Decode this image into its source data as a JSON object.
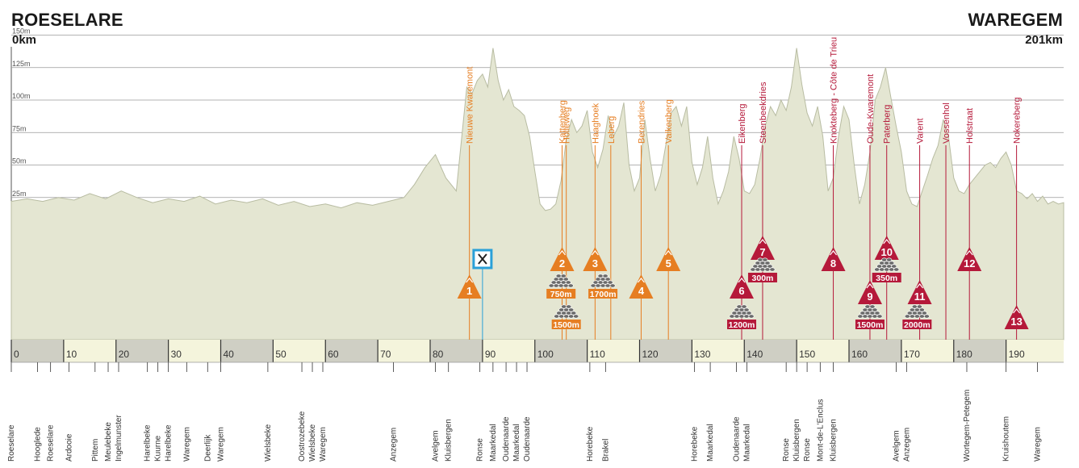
{
  "header": {
    "start_city": "ROESELARE",
    "start_km": "0km",
    "finish_city": "WAREGEM",
    "finish_km": "201km"
  },
  "colors": {
    "profile_fill": "#e4e6d2",
    "profile_edge": "#b8bca2",
    "climb_orange": "#e67e22",
    "climb_red": "#b5193a",
    "cobble_gray": "#6b6b6b",
    "axis_band_gray": "#cfcfc4",
    "axis_band_light": "#f4f4dc",
    "feed_blue": "#2aa0d8"
  },
  "chart_data": {
    "type": "area",
    "title": "",
    "xlabel": "",
    "ylabel": "",
    "xlim": [
      0,
      201
    ],
    "ylim": [
      0,
      160
    ],
    "y_ticks": [
      25,
      50,
      75,
      100,
      125,
      150
    ],
    "y_tick_labels": [
      "25m",
      "50m",
      "75m",
      "100m",
      "125m",
      "150m"
    ],
    "x_ticks": [
      0,
      10,
      20,
      30,
      40,
      50,
      60,
      70,
      80,
      90,
      100,
      110,
      120,
      130,
      140,
      150,
      160,
      170,
      180,
      190
    ],
    "grid": true,
    "profile": {
      "km": [
        0,
        3,
        6,
        9,
        12,
        15,
        18,
        21,
        24,
        27,
        30,
        33,
        36,
        39,
        42,
        45,
        48,
        51,
        54,
        57,
        60,
        63,
        66,
        69,
        72,
        75,
        77,
        79,
        81,
        83,
        85,
        86,
        87,
        88,
        89,
        90,
        91,
        92,
        93,
        94,
        95,
        96,
        97,
        98,
        99,
        100,
        101,
        102,
        103,
        104,
        105,
        106,
        107,
        108,
        109,
        110,
        111,
        112,
        113,
        114,
        115,
        116,
        117,
        118,
        119,
        120,
        121,
        122,
        123,
        124,
        125,
        126,
        127,
        128,
        129,
        130,
        131,
        132,
        133,
        134,
        135,
        136,
        137,
        138,
        139,
        140,
        141,
        142,
        143,
        144,
        145,
        146,
        147,
        148,
        149,
        150,
        151,
        152,
        153,
        154,
        155,
        156,
        157,
        158,
        159,
        160,
        161,
        162,
        163,
        164,
        165,
        166,
        167,
        168,
        169,
        170,
        171,
        172,
        173,
        174,
        175,
        176,
        177,
        178,
        179,
        180,
        181,
        182,
        183,
        184,
        185,
        186,
        187,
        188,
        189,
        190,
        191,
        192,
        193,
        194,
        195,
        196,
        197,
        198,
        199,
        200,
        201
      ],
      "elevation": [
        22,
        24,
        22,
        25,
        23,
        28,
        24,
        30,
        25,
        21,
        24,
        22,
        26,
        20,
        23,
        21,
        24,
        19,
        22,
        18,
        20,
        17,
        21,
        19,
        22,
        25,
        35,
        48,
        58,
        40,
        30,
        70,
        110,
        105,
        115,
        120,
        110,
        140,
        115,
        100,
        108,
        95,
        92,
        88,
        72,
        45,
        20,
        15,
        16,
        20,
        38,
        70,
        85,
        75,
        80,
        92,
        60,
        48,
        62,
        88,
        72,
        80,
        98,
        50,
        30,
        40,
        85,
        55,
        30,
        42,
        65,
        90,
        95,
        80,
        95,
        52,
        35,
        48,
        72,
        40,
        20,
        30,
        45,
        72,
        55,
        30,
        28,
        35,
        55,
        80,
        95,
        88,
        100,
        92,
        110,
        140,
        112,
        90,
        80,
        95,
        72,
        30,
        40,
        72,
        95,
        85,
        50,
        20,
        35,
        60,
        100,
        110,
        125,
        102,
        80,
        60,
        30,
        20,
        18,
        30,
        42,
        55,
        65,
        85,
        72,
        40,
        30,
        28,
        35,
        40,
        45,
        50,
        52,
        48,
        55,
        60,
        50,
        30,
        28,
        24,
        28,
        22,
        26,
        20,
        22,
        20,
        21
      ]
    },
    "climbs": [
      {
        "no": "1",
        "name": "Nieuwe Kwaremont",
        "km": 87.5,
        "color": "orange",
        "level": 0
      },
      {
        "no": "2",
        "name": "Kattenberg",
        "km": 105.2,
        "color": "orange",
        "level": 2
      },
      {
        "no": "",
        "name": "Holleweg",
        "km": 106.0,
        "color": "orange",
        "level": -1
      },
      {
        "no": "3",
        "name": "Haaghoek",
        "km": 111.5,
        "color": "orange",
        "level": 2
      },
      {
        "no": "",
        "name": "Leberg",
        "km": 114.5,
        "color": "orange",
        "level": -1
      },
      {
        "no": "4",
        "name": "Berendries",
        "km": 120.3,
        "color": "orange",
        "level": 0
      },
      {
        "no": "5",
        "name": "Valkenberg",
        "km": 125.5,
        "color": "orange",
        "level": 2
      },
      {
        "no": "6",
        "name": "Eikenberg",
        "km": 139.5,
        "color": "red",
        "level": 0
      },
      {
        "no": "7",
        "name": "Steenbeekdries",
        "km": 143.5,
        "color": "red",
        "level": 3
      },
      {
        "no": "8",
        "name": "Knokteberg - Côte de Trieu",
        "km": 157.0,
        "color": "red",
        "level": 2
      },
      {
        "no": "9",
        "name": "Oude-Kwaremont",
        "km": 164.0,
        "color": "red",
        "level": 1
      },
      {
        "no": "10",
        "name": "Paterberg",
        "km": 167.2,
        "color": "red",
        "level": 3
      },
      {
        "no": "11",
        "name": "Varent",
        "km": 173.5,
        "color": "red",
        "level": 1
      },
      {
        "no": "",
        "name": "Vossenhol",
        "km": 178.5,
        "color": "red",
        "level": -1
      },
      {
        "no": "12",
        "name": "Holstraat",
        "km": 183.0,
        "color": "red",
        "level": 2
      },
      {
        "no": "13",
        "name": "Nokereberg",
        "km": 192.0,
        "color": "red",
        "level": -2
      }
    ],
    "cobbles": [
      {
        "label": "750m",
        "km": 105.0,
        "level": 0
      },
      {
        "label": "1500m",
        "km": 106.0,
        "level": 1
      },
      {
        "label": "1700m",
        "km": 113.0,
        "level": 0
      },
      {
        "label": "1200m",
        "km": 139.5,
        "level": 1
      },
      {
        "label": "300m",
        "km": 143.5,
        "level": -1
      },
      {
        "label": "1500m",
        "km": 164.0,
        "level": 1
      },
      {
        "label": "350m",
        "km": 167.2,
        "level": -1
      },
      {
        "label": "2000m",
        "km": 173.0,
        "level": 1
      }
    ],
    "feed_zone": {
      "km": 90.0,
      "icon": "fork-knife-icon"
    },
    "places": [
      {
        "name": "Roeselare",
        "km": 0.0
      },
      {
        "name": "Hooglede",
        "km": 5.0
      },
      {
        "name": "Roeselare",
        "km": 7.5
      },
      {
        "name": "Ardooie",
        "km": 11.0
      },
      {
        "name": "Pittem",
        "km": 16.0
      },
      {
        "name": "Meulebeke",
        "km": 18.5
      },
      {
        "name": "Ingelmunster",
        "km": 20.5
      },
      {
        "name": "Harelbeke",
        "km": 26.0
      },
      {
        "name": "Kuurne",
        "km": 28.0
      },
      {
        "name": "Harelbeke",
        "km": 30.0
      },
      {
        "name": "Waregem",
        "km": 33.5
      },
      {
        "name": "Deerlijk",
        "km": 37.5
      },
      {
        "name": "Waregem",
        "km": 40.0
      },
      {
        "name": "Wielsbeke",
        "km": 49.0
      },
      {
        "name": "Oostrozebeke",
        "km": 55.5
      },
      {
        "name": "Wielsbeke",
        "km": 57.5
      },
      {
        "name": "Waregem",
        "km": 59.5
      },
      {
        "name": "Anzegem",
        "km": 73.0
      },
      {
        "name": "Avelgem",
        "km": 81.0
      },
      {
        "name": "Kluisbergen",
        "km": 83.5
      },
      {
        "name": "Ronse",
        "km": 89.5
      },
      {
        "name": "Maarkedal",
        "km": 92.0
      },
      {
        "name": "Oudenaarde",
        "km": 94.5
      },
      {
        "name": "Maarkedal",
        "km": 96.5
      },
      {
        "name": "Oudenaarde",
        "km": 98.5
      },
      {
        "name": "Horebeke",
        "km": 110.5
      },
      {
        "name": "Brakel",
        "km": 113.5
      },
      {
        "name": "Horebeke",
        "km": 130.5
      },
      {
        "name": "Maarkedal",
        "km": 133.5
      },
      {
        "name": "Oudenaarde",
        "km": 138.5
      },
      {
        "name": "Maarkedal",
        "km": 140.5
      },
      {
        "name": "Ronse",
        "km": 148.0
      },
      {
        "name": "Kluisbergen",
        "km": 150.0
      },
      {
        "name": "Ronse",
        "km": 152.0
      },
      {
        "name": "Mont-de-L'Enclus",
        "km": 154.5
      },
      {
        "name": "Kluisbergen",
        "km": 157.0
      },
      {
        "name": "Avelgem",
        "km": 169.0
      },
      {
        "name": "Anzegem",
        "km": 171.0
      },
      {
        "name": "Wortegem-Petegem",
        "km": 182.5
      },
      {
        "name": "Kruishoutem",
        "km": 190.0
      },
      {
        "name": "Waregem",
        "km": 196.0
      }
    ]
  }
}
